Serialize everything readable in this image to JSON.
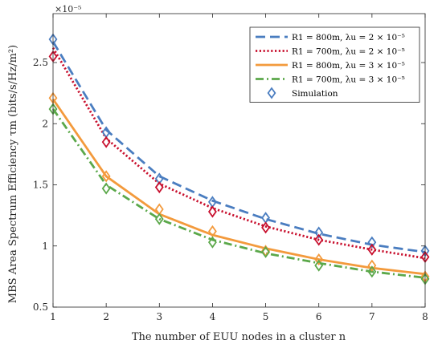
{
  "chart_data": {
    "type": "line",
    "xlabel": "The number of EUU nodes in a cluster n",
    "ylabel": "MBS Area Spectrum Efficiency τm (bits/s/Hz/m²)",
    "y_multiplier_label": "×10⁻⁵",
    "xlim": [
      1,
      8
    ],
    "ylim": [
      0.5,
      2.9
    ],
    "xticks": [
      "1",
      "2",
      "3",
      "4",
      "5",
      "6",
      "7",
      "8"
    ],
    "yticks": [
      "0.5",
      "1",
      "1.5",
      "2",
      "2.5"
    ],
    "grid": false,
    "legend_position": "top-right",
    "x": [
      1,
      2,
      3,
      4,
      5,
      6,
      7,
      8
    ],
    "series": [
      {
        "name": "R1 = 800m, λu = 2 × 10⁻⁵",
        "style": "dashed",
        "color": "#4A7DC0",
        "values": [
          2.67,
          1.95,
          1.57,
          1.37,
          1.22,
          1.1,
          1.01,
          0.95
        ],
        "simulation": [
          2.69,
          1.93,
          1.55,
          1.36,
          1.23,
          1.11,
          1.03,
          0.96
        ]
      },
      {
        "name": "R1 = 700m, λu = 2 × 10⁻⁵",
        "style": "dotted",
        "color": "#C8102E",
        "values": [
          2.62,
          1.88,
          1.51,
          1.31,
          1.16,
          1.05,
          0.97,
          0.9
        ],
        "simulation": [
          2.55,
          1.85,
          1.48,
          1.28,
          1.15,
          1.05,
          0.97,
          0.91
        ]
      },
      {
        "name": "R1 = 800m, λu = 3 × 10⁻⁵",
        "style": "solid",
        "color": "#F39A3C",
        "values": [
          2.2,
          1.57,
          1.26,
          1.09,
          0.98,
          0.89,
          0.82,
          0.77
        ],
        "simulation": [
          2.21,
          1.57,
          1.3,
          1.12,
          0.96,
          0.89,
          0.84,
          0.75
        ]
      },
      {
        "name": "R1 = 700m, λu = 3 × 10⁻⁵",
        "style": "dashdot",
        "color": "#5BA84A",
        "values": [
          2.12,
          1.5,
          1.22,
          1.05,
          0.94,
          0.86,
          0.79,
          0.74
        ],
        "simulation": [
          2.12,
          1.47,
          1.22,
          1.03,
          0.95,
          0.84,
          0.79,
          0.73
        ]
      }
    ],
    "marker_legend": "Simulation",
    "marker": "diamond"
  }
}
